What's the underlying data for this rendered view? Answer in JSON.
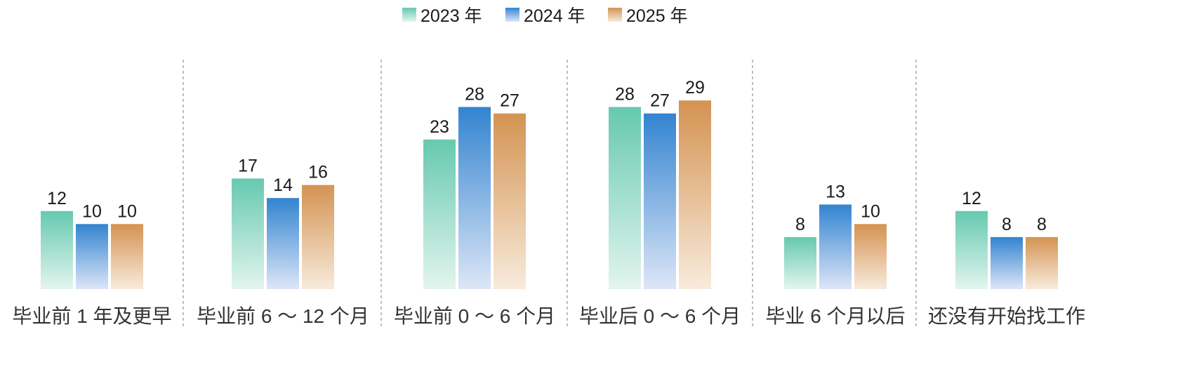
{
  "chart_data": {
    "type": "bar",
    "title": "",
    "xlabel": "",
    "ylabel": "",
    "ylim": [
      0,
      30
    ],
    "grid": false,
    "legend_position": "top-center",
    "categories": [
      "毕业前 1 年及更早",
      "毕业前 6 ～ 12 个月",
      "毕业前 0 ～ 6 个月",
      "毕业后 0 ～ 6 个月",
      "毕业 6 个月以后",
      "还没有开始找工作"
    ],
    "series": [
      {
        "name": "2023 年",
        "values": [
          12,
          17,
          23,
          28,
          8,
          12
        ],
        "color_top": "#66c9b0",
        "color_bottom": "#e3f5ee"
      },
      {
        "name": "2024 年",
        "values": [
          10,
          14,
          28,
          27,
          13,
          8
        ],
        "color_top": "#3384d0",
        "color_bottom": "#dde6f7"
      },
      {
        "name": "2025 年",
        "values": [
          10,
          16,
          27,
          29,
          10,
          8
        ],
        "color_top": "#d49352",
        "color_bottom": "#f8ebdc"
      }
    ]
  }
}
